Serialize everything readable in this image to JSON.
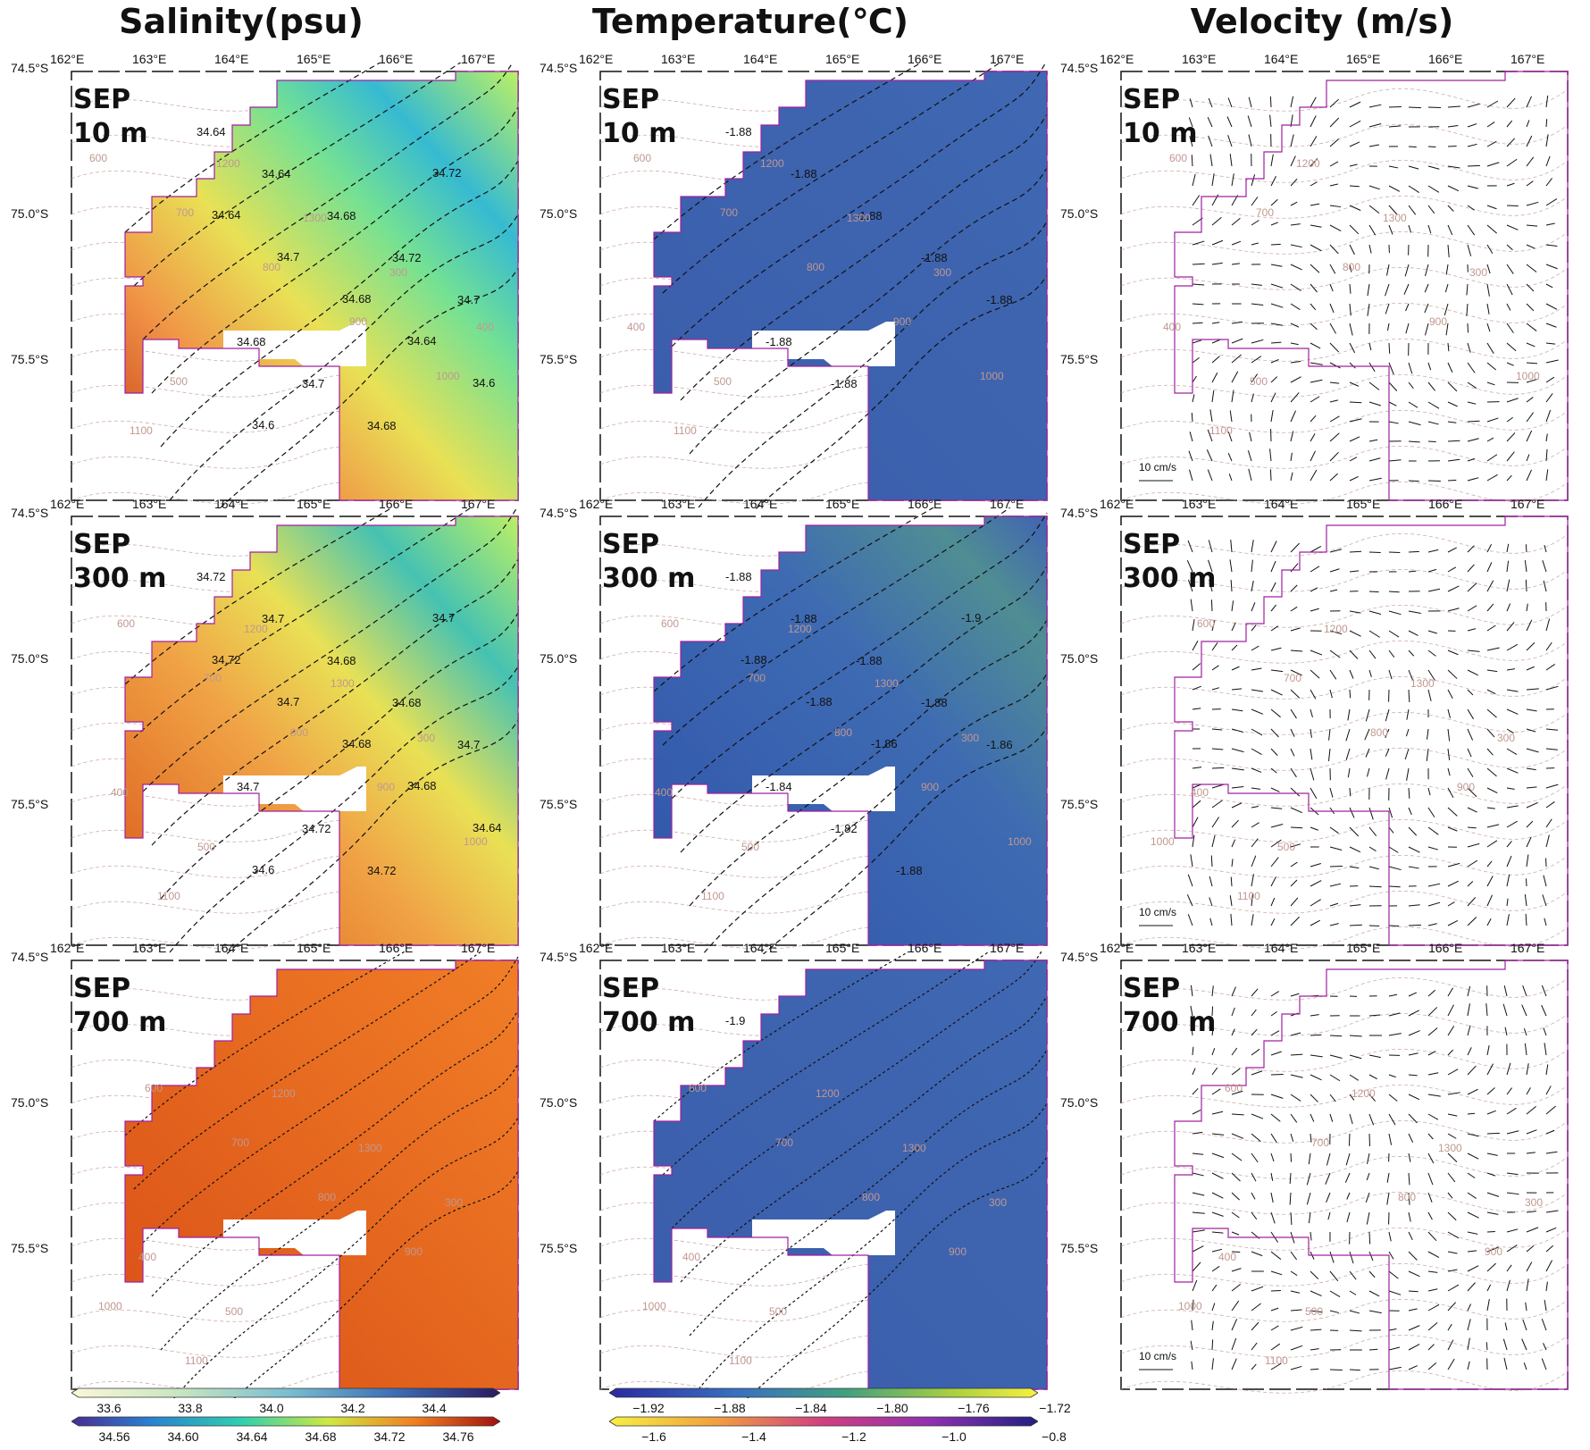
{
  "columns": [
    {
      "title": "Salinity(psu)"
    },
    {
      "title": "Temperature(℃)"
    },
    {
      "title": "Velocity (m/s)"
    }
  ],
  "lon_ticks": [
    "162°E",
    "163°E",
    "164°E",
    "165°E",
    "166°E",
    "167°E"
  ],
  "lat_ticks": [
    "74.5°S",
    "75.0°S",
    "75.5°S"
  ],
  "rows": [
    {
      "month": "SEP",
      "depth": "10 m"
    },
    {
      "month": "SEP",
      "depth": "300 m"
    },
    {
      "month": "SEP",
      "depth": "700 m"
    }
  ],
  "velocity_scale_label": "10 cm/s",
  "salinity_contours": {
    "row0": [
      "34.64",
      "34.64",
      "34.68",
      "34.72",
      "34.7",
      "34.68",
      "34.7",
      "34.68",
      "34.72",
      "34.64",
      "34.7",
      "34.68",
      "34.64",
      "34.6",
      "34.6"
    ],
    "row1": [
      "34.72",
      "34.7",
      "34.68",
      "34.68",
      "34.7",
      "34.7",
      "34.72",
      "34.72",
      "34.7",
      "34.72",
      "34.7",
      "34.68",
      "34.68",
      "34.64",
      "34.6"
    ]
  },
  "temperature_contours": {
    "row0": [
      "-1.88",
      "-1.88",
      "-1.88",
      "-1.88",
      "-1.88",
      "-1.88",
      "-1.88"
    ],
    "row1": [
      "-1.88",
      "-1.88",
      "-1.88",
      "-1.88",
      "-1.86",
      "-1.84",
      "-1.82",
      "-1.88",
      "-1.9",
      "-1.88",
      "-1.88",
      "-1.86"
    ],
    "row2": [
      "-1.9"
    ]
  },
  "bathymetry_labels": [
    "600",
    "700",
    "800",
    "900",
    "1000",
    "1100",
    "1200",
    "1300",
    "300",
    "400",
    "500"
  ],
  "colorbars": {
    "salinity_top": [
      "33.6",
      "33.8",
      "34.0",
      "34.2",
      "34.4"
    ],
    "salinity_bottom": [
      "34.56",
      "34.60",
      "34.64",
      "34.68",
      "34.72",
      "34.76"
    ],
    "temperature_top": [
      "−1.92",
      "−1.88",
      "−1.84",
      "−1.80",
      "−1.76",
      "−1.72"
    ],
    "temperature_bottom": [
      "−1.6",
      "−1.4",
      "−1.2",
      "−1.0",
      "−0.8"
    ]
  },
  "colors": {
    "domain_outline": "#a020a0",
    "bathymetry": "#c09890",
    "contour": "#111111",
    "temp_fill": "#3a5fb0",
    "salinity_high": "#d9541a",
    "salinity_mid": "#e8e040",
    "salinity_low": "#3aa0d8"
  }
}
